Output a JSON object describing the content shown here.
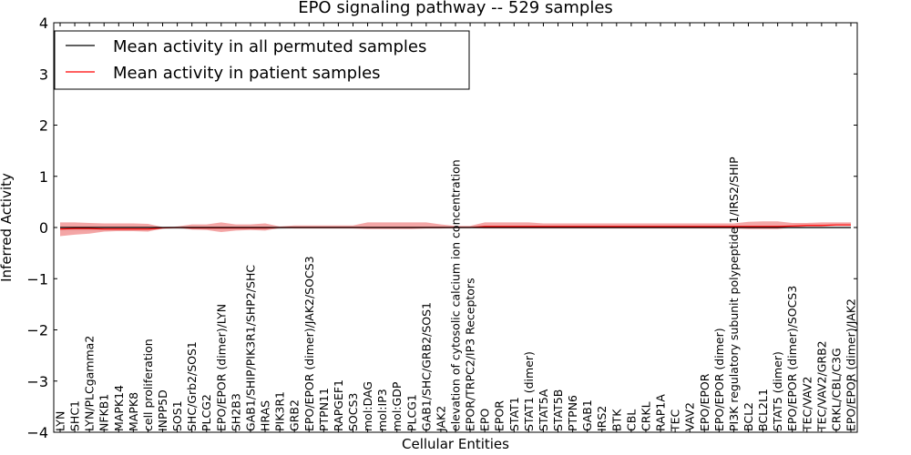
{
  "chart_data": {
    "type": "line",
    "title": "EPO signaling pathway -- 529 samples",
    "xlabel": "Cellular Entities",
    "ylabel": "Inferred Activity",
    "ylim": [
      -4,
      4
    ],
    "yticks": [
      -4,
      -3,
      -2,
      -1,
      0,
      1,
      2,
      3,
      4
    ],
    "ytick_labels": [
      "−4",
      "−3",
      "−2",
      "−1",
      "0",
      "1",
      "2",
      "3",
      "4"
    ],
    "legend_position": "top-left",
    "categories": [
      "LYN",
      "SHC1",
      "LYN/PLCgamma2",
      "NFKB1",
      "MAPK14",
      "MAPK8",
      "cell proliferation",
      "INPP5D",
      "SOS1",
      "SHC/Grb2/SOS1",
      "PLCG2",
      "EPO/EPOR (dimer)/LYN",
      "SH2B3",
      "GAB1/SHIP/PIK3R1/SHP2/SHC",
      "HRAS",
      "PIK3R1",
      "GRB2",
      "EPO/EPOR (dimer)/JAK2/SOCS3",
      "PTPN11",
      "RAPGEF1",
      "SOCS3",
      "mol:DAG",
      "mol:IP3",
      "mol:GDP",
      "PLCG1",
      "GAB1/SHC/GRB2/SOS1",
      "JAK2",
      "elevation of cytosolic calcium ion concentration",
      "EPOR/TRPC2/IP3 Receptors",
      "EPO",
      "EPOR",
      "STAT1",
      "STAT1 (dimer)",
      "STAT5A",
      "STAT5B",
      "PTPN6",
      "GAB1",
      "IRS2",
      "BTK",
      "CBL",
      "CRKL",
      "RAP1A",
      "TEC",
      "VAV2",
      "EPO/EPOR",
      "EPO/EPOR (dimer)",
      "PI3K regulatory subunit polypeptide 1/IRS2/SHIP",
      "BCL2",
      "BCL2L1",
      "STAT5 (dimer)",
      "EPO/EPOR (dimer)/SOCS3",
      "TEC/VAV2",
      "TEC/VAV2/GRB2",
      "CRKL/CBL/C3G",
      "EPO/EPOR (dimer)/JAK2"
    ],
    "series": [
      {
        "name": "Mean activity in all permuted samples",
        "color": "#000000",
        "values": [
          0.0,
          0.0,
          0.0,
          0.0,
          0.0,
          0.0,
          0.0,
          0.0,
          0.0,
          0.0,
          0.0,
          0.0,
          0.0,
          0.0,
          0.0,
          0.0,
          0.0,
          0.0,
          0.0,
          0.0,
          0.0,
          0.0,
          0.0,
          0.0,
          0.0,
          0.0,
          0.0,
          0.0,
          0.0,
          0.0,
          0.0,
          0.0,
          0.0,
          0.0,
          0.0,
          0.0,
          0.0,
          0.0,
          0.0,
          0.0,
          0.0,
          0.0,
          0.0,
          0.0,
          0.0,
          0.0,
          0.0,
          0.0,
          0.0,
          0.0,
          0.0,
          0.0,
          0.0,
          0.0,
          0.0
        ],
        "band_upper": [
          0.02,
          0.02,
          0.02,
          0.02,
          0.02,
          0.02,
          0.02,
          0.01,
          0.01,
          0.01,
          0.01,
          0.01,
          0.01,
          0.01,
          0.01,
          0.01,
          0.01,
          0.01,
          0.01,
          0.01,
          0.01,
          0.01,
          0.01,
          0.01,
          0.01,
          0.01,
          0.01,
          0.01,
          0.01,
          0.01,
          0.01,
          0.01,
          0.01,
          0.01,
          0.01,
          0.01,
          0.01,
          0.01,
          0.01,
          0.01,
          0.01,
          0.01,
          0.01,
          0.01,
          0.01,
          0.01,
          0.01,
          0.01,
          0.01,
          0.01,
          0.01,
          0.01,
          0.01,
          0.01,
          0.01
        ],
        "band_lower": [
          -0.06,
          -0.06,
          -0.06,
          -0.06,
          -0.06,
          -0.06,
          -0.06,
          -0.03,
          -0.03,
          -0.04,
          -0.04,
          -0.04,
          -0.04,
          -0.04,
          -0.04,
          -0.03,
          -0.02,
          -0.02,
          -0.02,
          -0.02,
          -0.02,
          -0.02,
          -0.02,
          -0.02,
          -0.02,
          -0.02,
          -0.02,
          -0.02,
          -0.02,
          -0.02,
          -0.02,
          -0.02,
          -0.02,
          -0.02,
          -0.02,
          -0.02,
          -0.02,
          -0.02,
          -0.02,
          -0.02,
          -0.02,
          -0.02,
          -0.02,
          -0.02,
          -0.02,
          -0.02,
          -0.02,
          -0.02,
          -0.02,
          -0.02,
          -0.02,
          -0.02,
          -0.02,
          -0.02,
          -0.02
        ]
      },
      {
        "name": "Mean activity in patient samples",
        "color": "#ff0000",
        "band_color": "#f08080",
        "values": [
          -0.03,
          -0.02,
          -0.02,
          -0.03,
          -0.03,
          -0.03,
          -0.03,
          -0.01,
          0.0,
          -0.01,
          -0.01,
          -0.01,
          -0.01,
          -0.01,
          -0.01,
          0.0,
          0.0,
          0.0,
          0.0,
          0.0,
          0.0,
          0.0,
          0.0,
          0.0,
          0.0,
          0.0,
          0.0,
          0.0,
          0.0,
          0.02,
          0.02,
          0.02,
          0.02,
          0.02,
          0.02,
          0.02,
          0.02,
          0.02,
          0.02,
          0.02,
          0.02,
          0.02,
          0.02,
          0.02,
          0.02,
          0.02,
          0.02,
          0.02,
          0.02,
          0.02,
          0.03,
          0.04,
          0.04,
          0.05,
          0.05
        ],
        "band_upper": [
          0.1,
          0.1,
          0.09,
          0.08,
          0.08,
          0.08,
          0.07,
          0.01,
          0.02,
          0.06,
          0.06,
          0.1,
          0.06,
          0.06,
          0.08,
          0.02,
          0.04,
          0.04,
          0.04,
          0.04,
          0.04,
          0.1,
          0.1,
          0.1,
          0.1,
          0.1,
          0.06,
          0.03,
          0.03,
          0.1,
          0.1,
          0.1,
          0.1,
          0.08,
          0.08,
          0.08,
          0.08,
          0.08,
          0.08,
          0.08,
          0.08,
          0.08,
          0.08,
          0.08,
          0.08,
          0.08,
          0.08,
          0.11,
          0.12,
          0.12,
          0.09,
          0.09,
          0.1,
          0.1,
          0.1
        ],
        "band_lower": [
          -0.17,
          -0.14,
          -0.12,
          -0.08,
          -0.07,
          -0.07,
          -0.08,
          -0.02,
          0.0,
          -0.04,
          -0.05,
          -0.09,
          -0.06,
          -0.05,
          -0.06,
          -0.01,
          -0.02,
          -0.02,
          -0.02,
          -0.02,
          -0.02,
          -0.03,
          -0.03,
          -0.03,
          -0.03,
          -0.02,
          -0.02,
          -0.01,
          -0.01,
          -0.02,
          -0.02,
          -0.02,
          -0.02,
          -0.02,
          -0.02,
          -0.02,
          -0.02,
          -0.02,
          -0.02,
          -0.02,
          -0.02,
          -0.02,
          -0.02,
          -0.02,
          -0.02,
          -0.02,
          -0.02,
          -0.03,
          -0.03,
          -0.03,
          0.0,
          0.02,
          0.02,
          0.03,
          0.03
        ]
      }
    ]
  }
}
